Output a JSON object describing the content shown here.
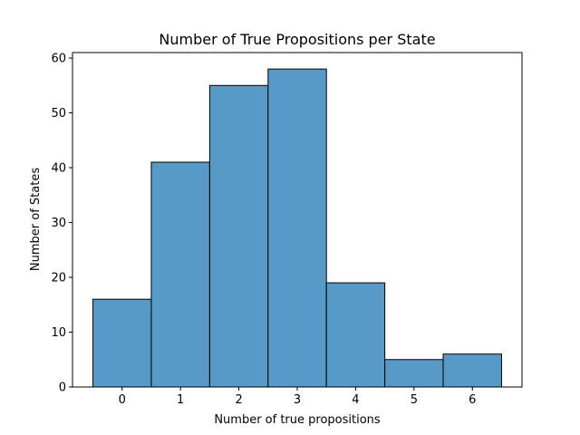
{
  "chart_data": {
    "type": "bar",
    "title": "Number of True Propositions per State",
    "xlabel": "Number of true propositions",
    "ylabel": "Number of States",
    "categories": [
      "0",
      "1",
      "2",
      "3",
      "4",
      "5",
      "6"
    ],
    "values": [
      16,
      41,
      55,
      58,
      19,
      5,
      6
    ],
    "xlim": [
      -0.85,
      6.85
    ],
    "ylim": [
      0,
      61
    ],
    "x_ticks": [
      "0",
      "1",
      "2",
      "3",
      "4",
      "5",
      "6"
    ],
    "y_ticks": [
      "0",
      "10",
      "20",
      "30",
      "40",
      "50",
      "60"
    ],
    "grid": false,
    "colors": {
      "bar_fill": "#5799c7",
      "bar_edge": "#000000",
      "axes": "#000000",
      "background": "#ffffff"
    }
  }
}
